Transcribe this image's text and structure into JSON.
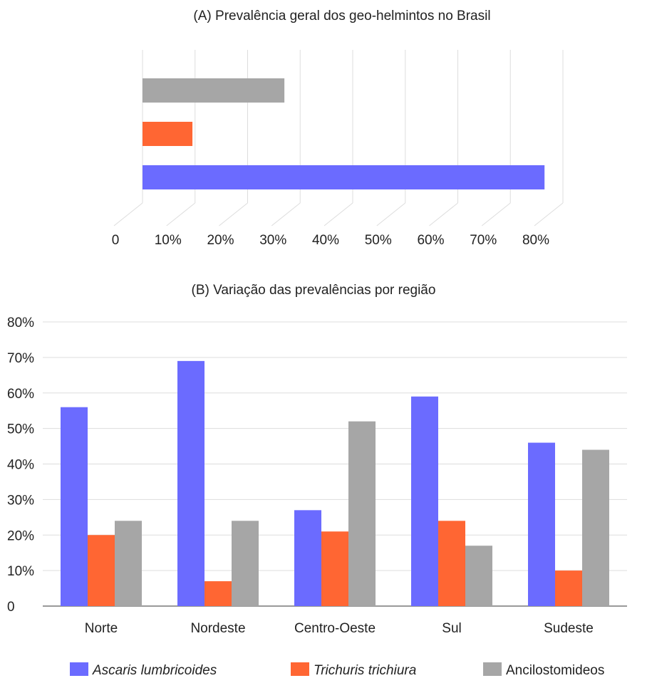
{
  "colors": {
    "ascaris": "#6b6bff",
    "trichuris": "#ff6633",
    "ancilo": "#a6a6a6",
    "grid": "#dddddd"
  },
  "chart_data": [
    {
      "type": "bar",
      "orientation": "horizontal",
      "title": "(A) Prevalência geral dos geo-helmintos no Brasil",
      "series": [
        {
          "name": "Ancilostomídeos",
          "value": 0.27,
          "color": "#a6a6a6"
        },
        {
          "name": "Trichuris trichiura",
          "value": 0.095,
          "color": "#ff6633"
        },
        {
          "name": "Ascaris lumbricoides",
          "value": 0.765,
          "color": "#6b6bff"
        }
      ],
      "xlim": [
        0,
        0.8
      ],
      "xticks": [
        "0",
        "10%",
        "20%",
        "30%",
        "40%",
        "50%",
        "60%",
        "70%",
        "80%"
      ],
      "grid": true
    },
    {
      "type": "bar",
      "title": "(B) Variação das prevalências por região",
      "categories": [
        "Norte",
        "Nordeste",
        "Centro-Oeste",
        "Sul",
        "Sudeste"
      ],
      "series": [
        {
          "name": "Ascaris lumbricoides",
          "values": [
            0.56,
            0.69,
            0.27,
            0.59,
            0.46
          ],
          "color": "#6b6bff",
          "italic": true
        },
        {
          "name": "Trichuris trichiura",
          "values": [
            0.2,
            0.07,
            0.21,
            0.24,
            0.1
          ],
          "color": "#ff6633",
          "italic": true
        },
        {
          "name": "Ancilostomideos",
          "values": [
            0.24,
            0.24,
            0.52,
            0.17,
            0.44
          ],
          "color": "#a6a6a6",
          "italic": false
        }
      ],
      "ylim": [
        0,
        0.8
      ],
      "yticks": [
        "0",
        "10%",
        "20%",
        "30%",
        "40%",
        "50%",
        "60%",
        "70%",
        "80%"
      ],
      "grid": true,
      "legend": "bottom"
    }
  ]
}
